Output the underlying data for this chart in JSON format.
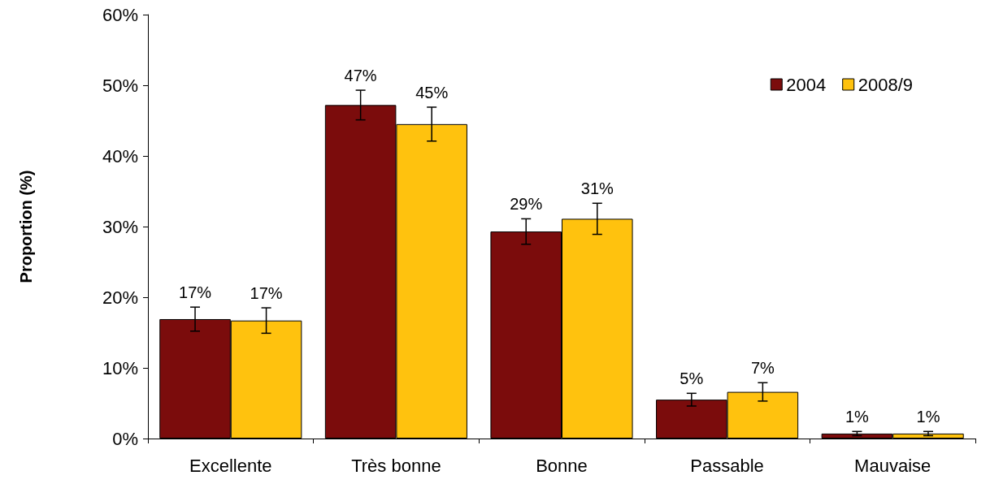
{
  "chart_data": {
    "type": "bar",
    "ylabel": "Proportion (%)",
    "categories": [
      "Excellente",
      "Très bonne",
      "Bonne",
      "Passable",
      "Mauvaise"
    ],
    "series": [
      {
        "name": "2004",
        "color": "#7b0c0c",
        "values": [
          16.9,
          47.2,
          29.3,
          5.5,
          0.7
        ],
        "errors": [
          1.7,
          2.1,
          1.8,
          0.9,
          0.3
        ],
        "value_labels": [
          "17%",
          "47%",
          "29%",
          "5%",
          "1%"
        ]
      },
      {
        "name": "2008/9",
        "color": "#ffc20e",
        "values": [
          16.7,
          44.5,
          31.1,
          6.6,
          0.7
        ],
        "errors": [
          1.8,
          2.4,
          2.2,
          1.3,
          0.3
        ],
        "value_labels": [
          "17%",
          "45%",
          "31%",
          "7%",
          "1%"
        ]
      }
    ],
    "ylim": [
      0,
      60
    ],
    "yticks": [
      {
        "value": 0,
        "label": "0%"
      },
      {
        "value": 10,
        "label": "10%"
      },
      {
        "value": 20,
        "label": "20%"
      },
      {
        "value": 30,
        "label": "30%"
      },
      {
        "value": 40,
        "label": "40%"
      },
      {
        "value": 50,
        "label": "50%"
      },
      {
        "value": 60,
        "label": "60%"
      }
    ],
    "grid": false,
    "legend": "top right"
  }
}
